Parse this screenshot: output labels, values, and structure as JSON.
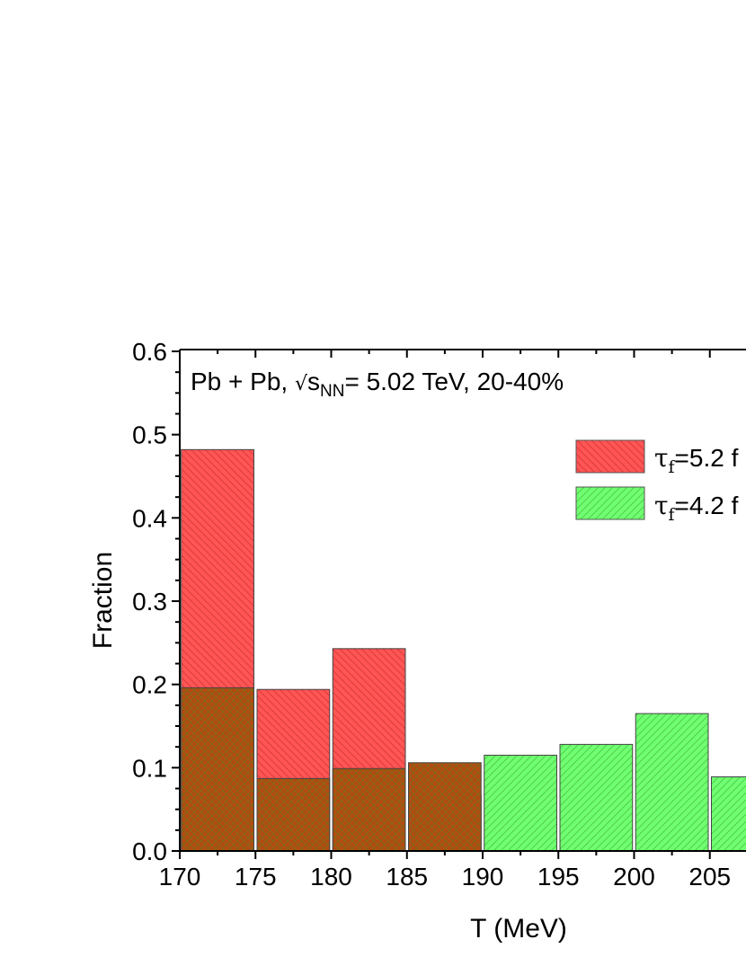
{
  "chart_data": {
    "type": "bar",
    "annotation": {
      "prefix": "Pb + Pb, ",
      "sqrt": "√",
      "s": "s",
      "sub": "NN",
      "suffix": "= 5.02 TeV, 20-40%"
    },
    "xlabel": "T (MeV)",
    "ylabel": "Fraction",
    "xlim": [
      170,
      210
    ],
    "ylim": [
      0,
      0.6
    ],
    "xticks": [
      "170",
      "175",
      "180",
      "185",
      "190",
      "195",
      "200",
      "205"
    ],
    "yticks": [
      "0.0",
      "0.1",
      "0.2",
      "0.3",
      "0.4",
      "0.5",
      "0.6"
    ],
    "bin_width": 5,
    "series": [
      {
        "name": "τf=5.2 f",
        "legend_symbol": "τ",
        "legend_sub": "f",
        "legend_rest": "=5.2 f",
        "color": "#ff4d4d",
        "hatch": "back-diagonal",
        "bins": [
          {
            "x_start": 170,
            "value": 0.482
          },
          {
            "x_start": 175,
            "value": 0.194
          },
          {
            "x_start": 180,
            "value": 0.243
          },
          {
            "x_start": 185,
            "value": 0.067
          }
        ]
      },
      {
        "name": "τf=4.2 f",
        "legend_symbol": "τ",
        "legend_sub": "f",
        "legend_rest": "=4.2 f",
        "color": "#66ff66",
        "hatch": "forward-diagonal",
        "bins": [
          {
            "x_start": 170,
            "value": 0.196
          },
          {
            "x_start": 175,
            "value": 0.087
          },
          {
            "x_start": 180,
            "value": 0.099
          },
          {
            "x_start": 185,
            "value": 0.106
          },
          {
            "x_start": 190,
            "value": 0.115
          },
          {
            "x_start": 195,
            "value": 0.128
          },
          {
            "x_start": 200,
            "value": 0.165
          },
          {
            "x_start": 205,
            "value": 0.089
          }
        ]
      }
    ],
    "legend_position": "top-right"
  }
}
